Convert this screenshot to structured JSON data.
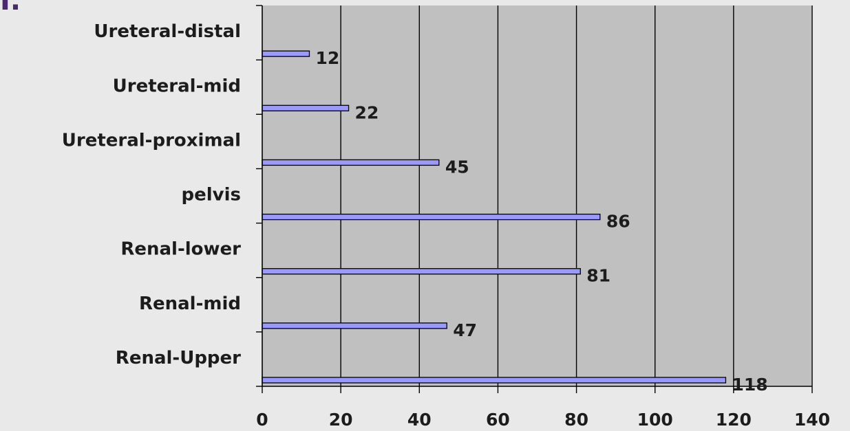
{
  "corner_mark": "I.",
  "chart_data": {
    "type": "bar",
    "orientation": "horizontal",
    "title": "",
    "xlabel": "",
    "ylabel": "",
    "categories": [
      "Ureteral-distal",
      "Ureteral-mid",
      "Ureteral-proximal",
      "pelvis",
      "Renal-lower",
      "Renal-mid",
      "Renal-Upper"
    ],
    "values": [
      12,
      22,
      45,
      86,
      81,
      47,
      118
    ],
    "xlim": [
      0,
      140
    ],
    "x_ticks": [
      0,
      20,
      40,
      60,
      80,
      100,
      120,
      140
    ],
    "grid": "vertical",
    "legend": "none",
    "colors": {
      "plot_background": "#c0c0c0",
      "page_background": "#e9e9e9",
      "bar_fill": "#9999ff",
      "bar_stroke": "#000000",
      "gridline": "#000000"
    }
  }
}
